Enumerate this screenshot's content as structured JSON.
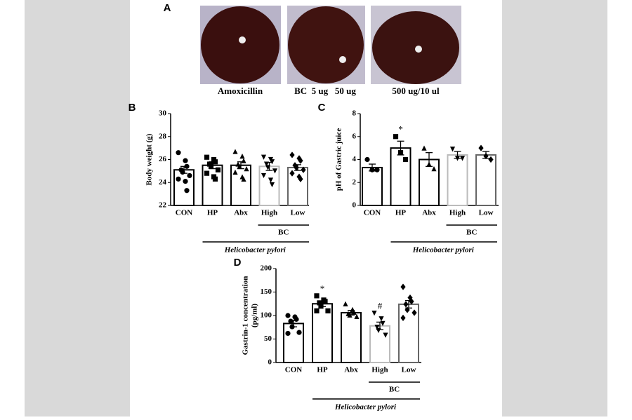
{
  "panel_a": {
    "label": "A",
    "captions": [
      "Amoxicillin",
      "BC  5 ug   50 ug",
      "500 ug/10 ul"
    ]
  },
  "chart_data": [
    {
      "type": "bar",
      "panel": "B",
      "ylabel": [
        "Body weight (g)"
      ],
      "categories": [
        "CON",
        "HP",
        "Abx",
        "High",
        "Low"
      ],
      "values": [
        25.1,
        25.5,
        25.5,
        25.4,
        25.3
      ],
      "errors": [
        0.3,
        0.3,
        0.3,
        0.35,
        0.25
      ],
      "points": [
        [
          26.6,
          25.9,
          25.4,
          25.1,
          24.9,
          24.6,
          24.3,
          24.1,
          23.3
        ],
        [
          26.2,
          26.0,
          25.8,
          25.6,
          25.4,
          25.1,
          24.8,
          24.5,
          24.3
        ],
        [
          26.7,
          26.3,
          25.9,
          25.6,
          25.4,
          25.2,
          24.9,
          24.5,
          24.3
        ],
        [
          26.2,
          26.0,
          25.8,
          25.6,
          25.3,
          25.0,
          24.6,
          24.2,
          23.8
        ],
        [
          26.4,
          26.1,
          25.9,
          25.5,
          25.3,
          25.1,
          24.8,
          24.5,
          24.3
        ]
      ],
      "markers": [
        null,
        null,
        null,
        null,
        null
      ],
      "bar_colors": [
        "#000000",
        "#000000",
        "#000000",
        "#bbbbbb",
        "#666666"
      ],
      "ylim": [
        22,
        30
      ],
      "yticks": [
        22,
        24,
        26,
        28,
        30
      ],
      "group_label": "BC",
      "species_label": "Helicobacter pylori"
    },
    {
      "type": "bar",
      "panel": "C",
      "ylabel": [
        "pH of Gastric juice"
      ],
      "categories": [
        "CON",
        "HP",
        "Abx",
        "High",
        "Low"
      ],
      "values": [
        3.3,
        5.0,
        4.0,
        4.4,
        4.4
      ],
      "errors": [
        0.3,
        0.6,
        0.6,
        0.3,
        0.3
      ],
      "points": [
        [
          4.0,
          3.1,
          3.1
        ],
        [
          6.0,
          4.6,
          4.0
        ],
        [
          5.0,
          3.6,
          3.2
        ],
        [
          4.9,
          4.1,
          4.1
        ],
        [
          5.0,
          4.3,
          4.0
        ]
      ],
      "markers": [
        null,
        "*",
        null,
        null,
        null
      ],
      "bar_colors": [
        "#000000",
        "#000000",
        "#000000",
        "#bbbbbb",
        "#666666"
      ],
      "ylim": [
        0,
        8
      ],
      "yticks": [
        0,
        2,
        4,
        6,
        8
      ],
      "group_label": "BC",
      "species_label": "Helicobacter pylori"
    },
    {
      "type": "bar",
      "panel": "D",
      "ylabel": [
        "Gastrin-1 concentration",
        "(pg/ml)"
      ],
      "categories": [
        "CON",
        "HP",
        "Abx",
        "High",
        "Low"
      ],
      "values": [
        83,
        125,
        106,
        78,
        124
      ],
      "errors": [
        7,
        6,
        5,
        8,
        8
      ],
      "points": [
        [
          100,
          97,
          92,
          88,
          76,
          64,
          62
        ],
        [
          142,
          133,
          130,
          127,
          120,
          110,
          110
        ],
        [
          125,
          113,
          107,
          104,
          101,
          98
        ],
        [
          105,
          93,
          83,
          75,
          68,
          58
        ],
        [
          161,
          138,
          130,
          124,
          112,
          106,
          95
        ]
      ],
      "markers": [
        null,
        "*",
        null,
        "#",
        null
      ],
      "bar_colors": [
        "#000000",
        "#000000",
        "#000000",
        "#bbbbbb",
        "#666666"
      ],
      "ylim": [
        0,
        200
      ],
      "yticks": [
        0,
        50,
        100,
        150,
        200
      ],
      "group_label": "BC",
      "species_label": "Helicobacter pylori"
    }
  ]
}
